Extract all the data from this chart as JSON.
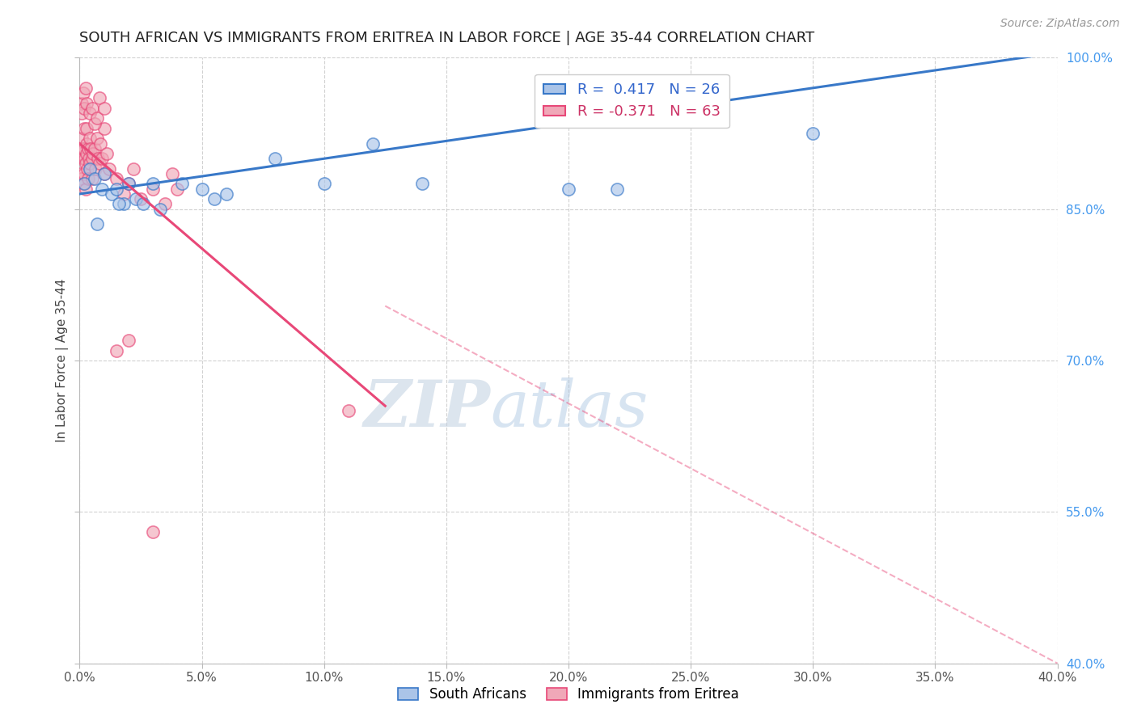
{
  "title": "SOUTH AFRICAN VS IMMIGRANTS FROM ERITREA IN LABOR FORCE | AGE 35-44 CORRELATION CHART",
  "source": "Source: ZipAtlas.com",
  "ylabel": "In Labor Force | Age 35-44",
  "xmin": 0.0,
  "xmax": 40.0,
  "ymin": 40.0,
  "ymax": 100.0,
  "yticks": [
    40.0,
    55.0,
    70.0,
    85.0,
    100.0
  ],
  "xticks": [
    0.0,
    5.0,
    10.0,
    15.0,
    20.0,
    25.0,
    30.0,
    35.0,
    40.0
  ],
  "blue_R": 0.417,
  "blue_N": 26,
  "pink_R": -0.371,
  "pink_N": 63,
  "blue_color": "#aac4e8",
  "pink_color": "#f0a8b8",
  "blue_line_color": "#3878c8",
  "pink_line_color": "#e84878",
  "blue_x": [
    0.2,
    0.4,
    0.6,
    0.9,
    1.0,
    1.3,
    1.5,
    1.8,
    2.0,
    2.3,
    2.6,
    3.0,
    3.3,
    4.2,
    5.0,
    5.5,
    6.0,
    8.0,
    10.0,
    12.0,
    14.0,
    20.0,
    22.0,
    0.7,
    1.6,
    30.0
  ],
  "blue_y": [
    87.5,
    89.0,
    88.0,
    87.0,
    88.5,
    86.5,
    87.0,
    85.5,
    87.5,
    86.0,
    85.5,
    87.5,
    85.0,
    87.5,
    87.0,
    86.0,
    86.5,
    90.0,
    87.5,
    91.5,
    87.5,
    87.0,
    87.0,
    83.5,
    85.5,
    92.5
  ],
  "pink_x": [
    0.05,
    0.05,
    0.08,
    0.1,
    0.1,
    0.12,
    0.15,
    0.15,
    0.18,
    0.2,
    0.2,
    0.22,
    0.25,
    0.25,
    0.28,
    0.3,
    0.3,
    0.32,
    0.35,
    0.35,
    0.38,
    0.4,
    0.42,
    0.45,
    0.5,
    0.5,
    0.55,
    0.6,
    0.65,
    0.7,
    0.75,
    0.8,
    0.85,
    0.9,
    1.0,
    1.0,
    1.1,
    1.2,
    1.5,
    1.8,
    2.0,
    2.2,
    2.5,
    3.0,
    3.5,
    3.8,
    4.0,
    0.08,
    0.1,
    0.15,
    0.2,
    0.25,
    0.3,
    0.4,
    0.5,
    0.6,
    0.7,
    0.8,
    1.0,
    1.5,
    2.0,
    11.0,
    3.0
  ],
  "pink_y": [
    90.5,
    88.5,
    92.0,
    90.5,
    88.0,
    91.0,
    90.0,
    87.5,
    93.0,
    91.0,
    88.5,
    90.0,
    89.5,
    87.0,
    91.5,
    93.0,
    90.5,
    89.0,
    91.0,
    88.0,
    90.0,
    92.0,
    89.5,
    91.0,
    90.0,
    88.0,
    90.5,
    91.0,
    89.0,
    92.0,
    90.0,
    89.5,
    91.5,
    90.0,
    93.0,
    88.5,
    90.5,
    89.0,
    88.0,
    86.5,
    87.5,
    89.0,
    86.0,
    87.0,
    85.5,
    88.5,
    87.0,
    95.5,
    94.5,
    96.5,
    95.0,
    97.0,
    95.5,
    94.5,
    95.0,
    93.5,
    94.0,
    96.0,
    95.0,
    71.0,
    72.0,
    65.0,
    53.0
  ],
  "pink_solid_xmax": 12.5,
  "blue_line_y_at_0": 86.5,
  "blue_line_y_at_40": 100.5,
  "pink_line_y_at_0": 91.5,
  "pink_line_y_at_12_5": 65.5,
  "pink_line_y_at_40": 40.0
}
